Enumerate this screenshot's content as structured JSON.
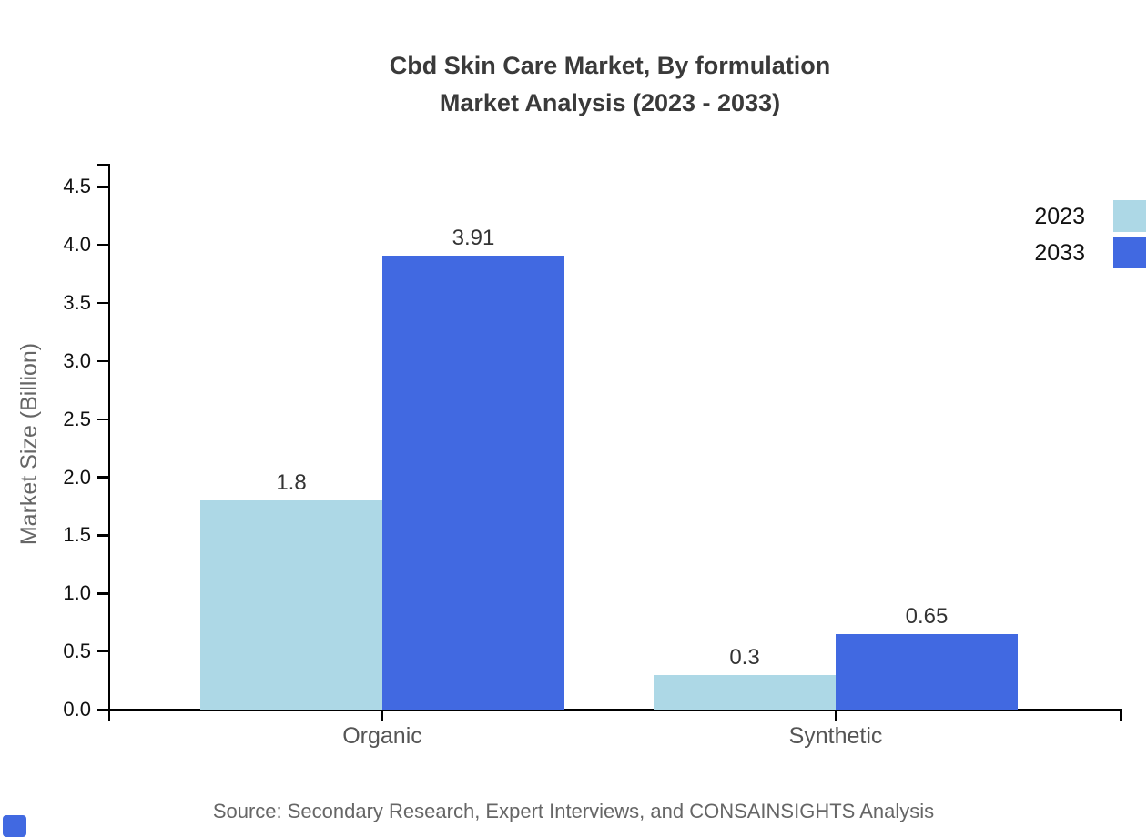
{
  "title": {
    "line1": "Cbd Skin Care Market, By formulation",
    "line2": "Market Analysis (2023 - 2033)"
  },
  "chart_data": {
    "type": "bar",
    "categories": [
      "Organic",
      "Synthetic"
    ],
    "series": [
      {
        "name": "2023",
        "color": "#ADD8E6",
        "values": [
          1.8,
          0.3
        ],
        "labels": [
          "1.8",
          "0.3"
        ]
      },
      {
        "name": "2033",
        "color": "#4169E1",
        "values": [
          3.91,
          0.65
        ],
        "labels": [
          "3.91",
          "0.65"
        ]
      }
    ],
    "ylabel": "Market Size (Billion)",
    "xlabel": "",
    "ylim": [
      0,
      4.5
    ],
    "ytick_step": 0.5,
    "yticks": [
      "0.0",
      "0.5",
      "1.0",
      "1.5",
      "2.0",
      "2.5",
      "3.0",
      "3.5",
      "4.0",
      "4.5"
    ],
    "grid": false,
    "legend_position": "top-right"
  },
  "source": {
    "text": "Source: Secondary Research, Expert Interviews, and CONSAINSIGHTS Analysis"
  },
  "colors": {
    "series_2023": "#ADD8E6",
    "series_2033": "#4169E1",
    "axis": "#000000",
    "title_text": "#3a3a3a",
    "muted_text": "#666666",
    "logo": "#4169E1"
  }
}
